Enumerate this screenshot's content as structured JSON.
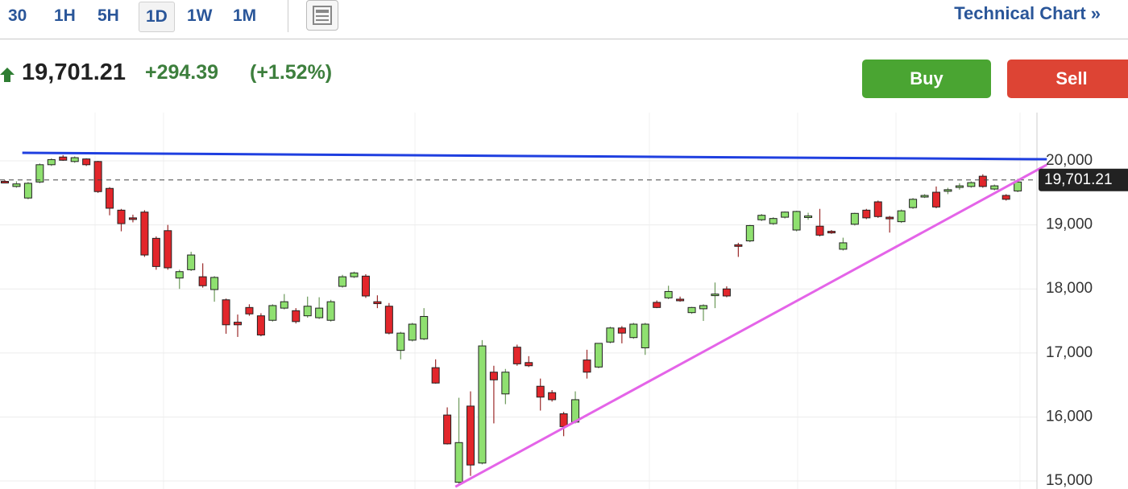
{
  "toolbar": {
    "intervals": [
      "30",
      "1H",
      "5H",
      "1D",
      "1W",
      "1M"
    ],
    "active": 3,
    "link": "Technical Chart »"
  },
  "quote": {
    "price": "19,701.21",
    "change": "+294.39",
    "change_percent": "(+1.52%)"
  },
  "actions": {
    "buy": "Buy",
    "sell": "Sell"
  },
  "chart_data": {
    "type": "candlestick",
    "ylim": [
      14875,
      20754
    ],
    "yticks": [
      {
        "value": 15000,
        "label": "15,000"
      },
      {
        "value": 16000,
        "label": "16,000"
      },
      {
        "value": 17000,
        "label": "17,000"
      },
      {
        "value": 18000,
        "label": "18,000"
      },
      {
        "value": 19000,
        "label": "19,000"
      },
      {
        "value": 20000,
        "label": "20,000"
      }
    ],
    "grid": true,
    "up_color": "#8fe070",
    "down_color": "#e2262b",
    "last_price": {
      "value": 19701.21,
      "label": "19,701.21"
    },
    "candles": [
      [
        19680,
        19700,
        19650,
        19670
      ],
      [
        19600,
        19680,
        19580,
        19640
      ],
      [
        19420,
        19670,
        19400,
        19650
      ],
      [
        19670,
        19960,
        19650,
        19940
      ],
      [
        19940,
        20040,
        19920,
        20020
      ],
      [
        20060,
        20090,
        20000,
        20010
      ],
      [
        19990,
        20070,
        19970,
        20050
      ],
      [
        20030,
        20040,
        19920,
        19940
      ],
      [
        19990,
        20000,
        19500,
        19520
      ],
      [
        19570,
        19590,
        19150,
        19260
      ],
      [
        19230,
        19250,
        18900,
        19020
      ],
      [
        19110,
        19160,
        19040,
        19090
      ],
      [
        19200,
        19230,
        18500,
        18530
      ],
      [
        18790,
        18820,
        18300,
        18350
      ],
      [
        18910,
        19000,
        18300,
        18330
      ],
      [
        18170,
        18300,
        18000,
        18270
      ],
      [
        18300,
        18580,
        18280,
        18530
      ],
      [
        18190,
        18400,
        18020,
        18050
      ],
      [
        17990,
        18200,
        17800,
        18180
      ],
      [
        17830,
        17850,
        17300,
        17440
      ],
      [
        17480,
        17600,
        17250,
        17440
      ],
      [
        17710,
        17760,
        17580,
        17610
      ],
      [
        17580,
        17620,
        17260,
        17280
      ],
      [
        17510,
        17760,
        17490,
        17740
      ],
      [
        17700,
        17920,
        17680,
        17800
      ],
      [
        17660,
        17700,
        17460,
        17490
      ],
      [
        17580,
        17880,
        17550,
        17730
      ],
      [
        17550,
        17870,
        17530,
        17700
      ],
      [
        17510,
        17830,
        17490,
        17800
      ],
      [
        18040,
        18220,
        18020,
        18190
      ],
      [
        18190,
        18270,
        18170,
        18250
      ],
      [
        18200,
        18230,
        17860,
        17890
      ],
      [
        17800,
        17900,
        17700,
        17770
      ],
      [
        17730,
        17780,
        17290,
        17310
      ],
      [
        17040,
        17330,
        16900,
        17310
      ],
      [
        17200,
        17470,
        17180,
        17450
      ],
      [
        17220,
        17700,
        17200,
        17570
      ],
      [
        16770,
        16900,
        16520,
        16530
      ],
      [
        16030,
        16150,
        15570,
        15580
      ],
      [
        14980,
        16300,
        14950,
        15600
      ],
      [
        16170,
        16400,
        15080,
        15250
      ],
      [
        15280,
        17200,
        15260,
        17110
      ],
      [
        16700,
        16800,
        15900,
        16580
      ],
      [
        16360,
        16750,
        16200,
        16700
      ],
      [
        17090,
        17130,
        16800,
        16830
      ],
      [
        16850,
        16950,
        16780,
        16800
      ],
      [
        16480,
        16600,
        16100,
        16310
      ],
      [
        16380,
        16420,
        16240,
        16270
      ],
      [
        16050,
        16080,
        15700,
        15850
      ],
      [
        15920,
        16400,
        15900,
        16270
      ],
      [
        16890,
        17050,
        16600,
        16700
      ],
      [
        16780,
        17150,
        16760,
        17150
      ],
      [
        17170,
        17410,
        17150,
        17390
      ],
      [
        17390,
        17420,
        17150,
        17310
      ],
      [
        17240,
        17470,
        17220,
        17450
      ],
      [
        17080,
        17470,
        16970,
        17450
      ],
      [
        17790,
        17820,
        17700,
        17710
      ],
      [
        17860,
        18050,
        17840,
        17960
      ],
      [
        17840,
        17880,
        17800,
        17830
      ],
      [
        17630,
        17720,
        17610,
        17710
      ],
      [
        17690,
        17760,
        17500,
        17740
      ],
      [
        17900,
        18100,
        17700,
        17920
      ],
      [
        18000,
        18040,
        17870,
        17890
      ],
      [
        18690,
        18720,
        18500,
        18670
      ],
      [
        18750,
        19000,
        18730,
        18990
      ],
      [
        19080,
        19170,
        19060,
        19150
      ],
      [
        19020,
        19120,
        19000,
        19100
      ],
      [
        19120,
        19210,
        19100,
        19200
      ],
      [
        18920,
        19220,
        18900,
        19210
      ],
      [
        19120,
        19190,
        19080,
        19140
      ],
      [
        18980,
        19250,
        18820,
        18840
      ],
      [
        18900,
        18920,
        18860,
        18880
      ],
      [
        18620,
        18800,
        18600,
        18720
      ],
      [
        19010,
        19190,
        18990,
        19180
      ],
      [
        19230,
        19250,
        19090,
        19110
      ],
      [
        19360,
        19380,
        19110,
        19130
      ],
      [
        19120,
        19140,
        18880,
        19100
      ],
      [
        19050,
        19240,
        19030,
        19220
      ],
      [
        19270,
        19420,
        19250,
        19400
      ],
      [
        19440,
        19480,
        19420,
        19460
      ],
      [
        19510,
        19600,
        19260,
        19280
      ],
      [
        19530,
        19580,
        19480,
        19550
      ],
      [
        19590,
        19650,
        19550,
        19610
      ],
      [
        19600,
        19680,
        19580,
        19660
      ],
      [
        19760,
        19790,
        19580,
        19600
      ],
      [
        19560,
        19630,
        19540,
        19610
      ],
      [
        19460,
        19480,
        19380,
        19400
      ],
      [
        19530,
        19720,
        19510,
        19670
      ]
    ],
    "trendlines": [
      {
        "color": "#1f3fe0",
        "points": [
          [
            1.5,
            20126
          ],
          [
            89.5,
            20025
          ]
        ]
      },
      {
        "color": "#e464e8",
        "points": [
          [
            38.7,
            14910
          ],
          [
            89.5,
            19940
          ]
        ]
      }
    ]
  }
}
